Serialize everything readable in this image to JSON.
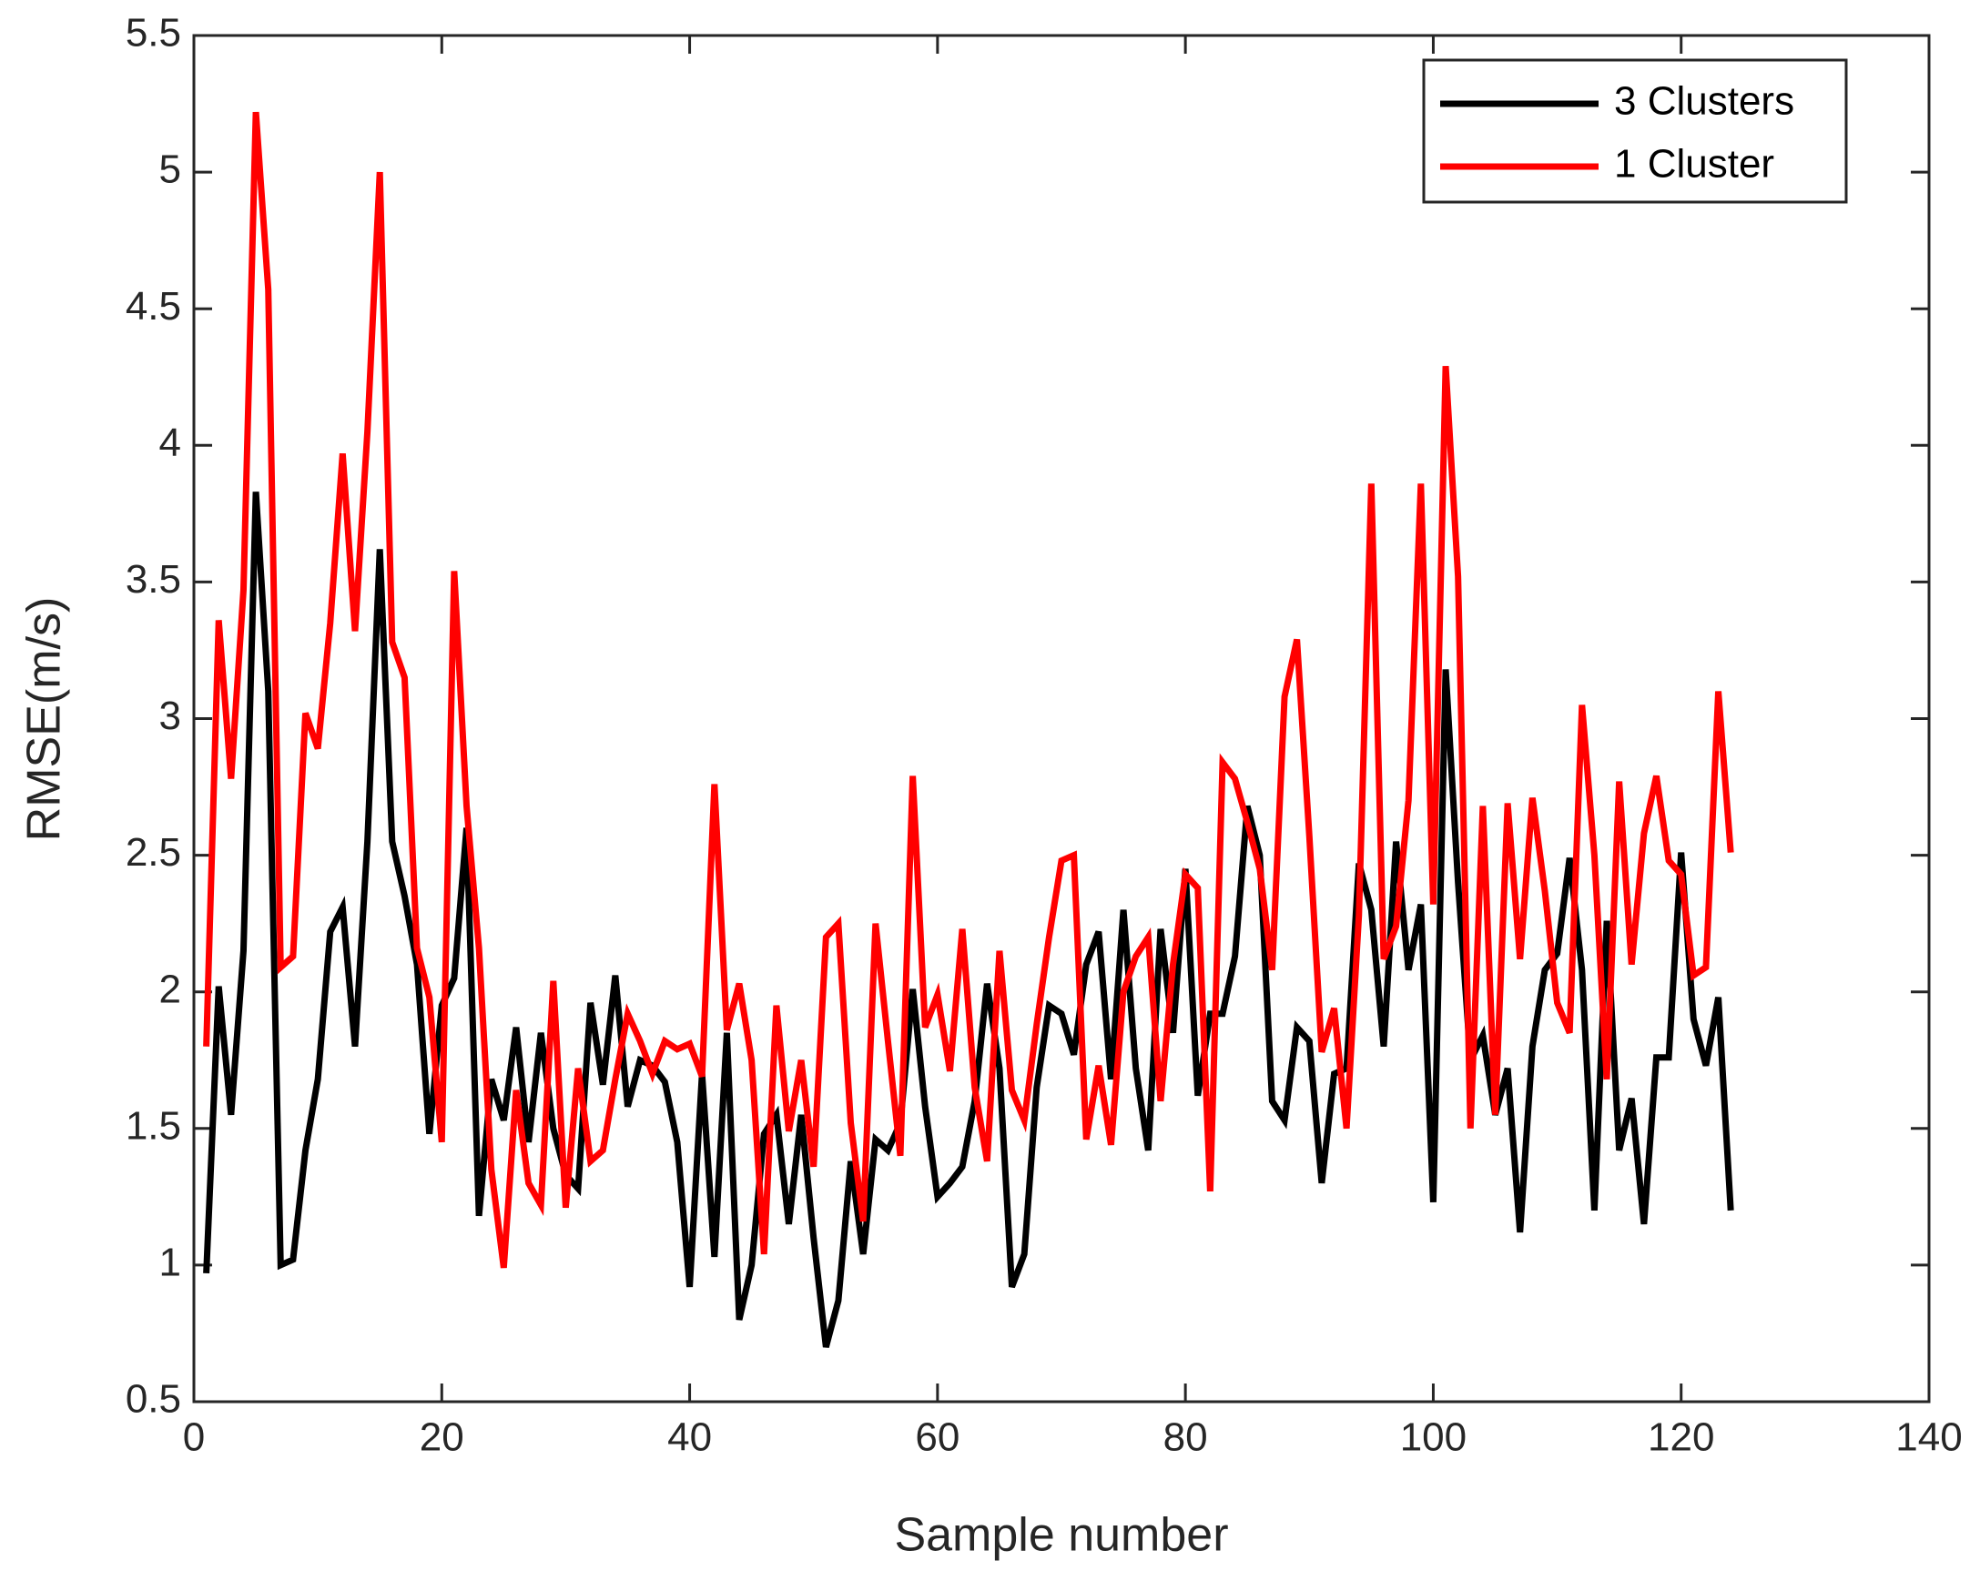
{
  "chart_data": {
    "type": "line",
    "xlabel": "Sample number",
    "ylabel": "RMSE(m/s)",
    "x": [
      1,
      2,
      3,
      4,
      5,
      6,
      7,
      8,
      9,
      10,
      11,
      12,
      13,
      14,
      15,
      16,
      17,
      18,
      19,
      20,
      21,
      22,
      23,
      24,
      25,
      26,
      27,
      28,
      29,
      30,
      31,
      32,
      33,
      34,
      35,
      36,
      37,
      38,
      39,
      40,
      41,
      42,
      43,
      44,
      45,
      46,
      47,
      48,
      49,
      50,
      51,
      52,
      53,
      54,
      55,
      56,
      57,
      58,
      59,
      60,
      61,
      62,
      63,
      64,
      65,
      66,
      67,
      68,
      69,
      70,
      71,
      72,
      73,
      74,
      75,
      76,
      77,
      78,
      79,
      80,
      81,
      82,
      83,
      84,
      85,
      86,
      87,
      88,
      89,
      90,
      91,
      92,
      93,
      94,
      95,
      96,
      97,
      98,
      99,
      100,
      101,
      102,
      103,
      104,
      105,
      106,
      107,
      108,
      109,
      110,
      111,
      112,
      113,
      114,
      115,
      116,
      117,
      118,
      119,
      120,
      121,
      122,
      123,
      124
    ],
    "series": [
      {
        "name": "3 Clusters",
        "color": "#000000",
        "values": [
          0.97,
          2.02,
          1.55,
          2.15,
          3.83,
          3.1,
          1.0,
          1.02,
          1.42,
          1.68,
          2.22,
          2.31,
          1.8,
          2.55,
          3.62,
          2.55,
          2.35,
          2.1,
          1.48,
          1.95,
          2.05,
          2.6,
          1.18,
          1.68,
          1.53,
          1.87,
          1.45,
          1.85,
          1.5,
          1.33,
          1.28,
          1.96,
          1.66,
          2.06,
          1.58,
          1.75,
          1.73,
          1.67,
          1.45,
          0.92,
          1.7,
          1.03,
          1.85,
          0.8,
          1.0,
          1.48,
          1.55,
          1.15,
          1.55,
          1.1,
          0.7,
          0.87,
          1.38,
          1.04,
          1.46,
          1.42,
          1.52,
          2.01,
          1.58,
          1.25,
          1.3,
          1.36,
          1.6,
          2.03,
          1.72,
          0.92,
          1.04,
          1.65,
          1.95,
          1.92,
          1.77,
          2.1,
          2.22,
          1.68,
          2.3,
          1.72,
          1.42,
          2.23,
          1.85,
          2.45,
          1.62,
          1.92,
          1.92,
          2.13,
          2.68,
          2.5,
          1.6,
          1.53,
          1.87,
          1.82,
          1.3,
          1.7,
          1.72,
          2.47,
          2.3,
          1.8,
          2.55,
          2.08,
          2.32,
          1.23,
          3.18,
          2.4,
          1.75,
          1.84,
          1.55,
          1.72,
          1.12,
          1.8,
          2.08,
          2.14,
          2.49,
          2.08,
          1.2,
          2.26,
          1.42,
          1.61,
          1.15,
          1.76,
          1.76,
          2.51,
          1.9,
          1.73,
          1.98,
          1.2
        ]
      },
      {
        "name": "1 Cluster",
        "color": "#ff0000",
        "values": [
          1.8,
          3.36,
          2.78,
          3.47,
          5.22,
          4.57,
          2.09,
          2.13,
          3.02,
          2.89,
          3.35,
          3.97,
          3.32,
          4.05,
          5.0,
          3.28,
          3.15,
          2.16,
          1.98,
          1.45,
          3.54,
          2.68,
          2.16,
          1.35,
          0.99,
          1.64,
          1.3,
          1.22,
          2.04,
          1.21,
          1.72,
          1.38,
          1.42,
          1.68,
          1.92,
          1.82,
          1.7,
          1.82,
          1.79,
          1.81,
          1.69,
          2.76,
          1.86,
          2.03,
          1.75,
          1.04,
          1.95,
          1.49,
          1.75,
          1.36,
          2.2,
          2.25,
          1.52,
          1.16,
          2.25,
          1.82,
          1.4,
          2.79,
          1.87,
          1.99,
          1.71,
          2.23,
          1.65,
          1.38,
          2.15,
          1.64,
          1.53,
          1.88,
          2.2,
          2.48,
          2.5,
          1.46,
          1.73,
          1.44,
          2.0,
          2.13,
          2.2,
          1.6,
          2.1,
          2.43,
          2.38,
          1.27,
          2.84,
          2.78,
          2.62,
          2.45,
          2.08,
          3.08,
          3.29,
          2.57,
          1.78,
          1.94,
          1.5,
          2.28,
          3.86,
          2.12,
          2.24,
          2.7,
          3.86,
          2.32,
          4.29,
          3.52,
          1.5,
          2.68,
          1.55,
          2.69,
          2.12,
          2.71,
          2.37,
          1.96,
          1.85,
          3.05,
          2.5,
          1.68,
          2.77,
          2.1,
          2.58,
          2.79,
          2.48,
          2.43,
          2.06,
          2.09,
          3.1,
          2.51
        ]
      }
    ],
    "xlim": [
      0,
      140
    ],
    "xticks": [
      0,
      20,
      40,
      60,
      80,
      100,
      120,
      140
    ],
    "ylim": [
      0.5,
      5.5
    ],
    "yticks": [
      0.5,
      1,
      1.5,
      2,
      2.5,
      3,
      3.5,
      4,
      4.5,
      5,
      5.5
    ],
    "legend": "upper right",
    "grid": false
  }
}
